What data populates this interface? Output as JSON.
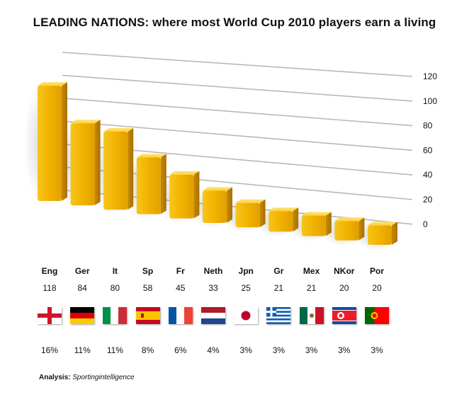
{
  "title": "LEADING NATIONS: where most World Cup 2010 players earn a living",
  "chart_data": {
    "type": "bar",
    "title": "LEADING NATIONS: where most World Cup 2010 players earn a living",
    "categories": [
      "Eng",
      "Ger",
      "It",
      "Sp",
      "Fr",
      "Neth",
      "Jpn",
      "Gr",
      "Mex",
      "NKor",
      "Por"
    ],
    "values": [
      118,
      84,
      80,
      58,
      45,
      33,
      25,
      21,
      21,
      20,
      20
    ],
    "shares": [
      "16%",
      "11%",
      "11%",
      "8%",
      "6%",
      "4%",
      "3%",
      "3%",
      "3%",
      "3%",
      "3%"
    ],
    "yticks": [
      "0",
      "20",
      "40",
      "60",
      "80",
      "100",
      "120"
    ],
    "ylim": [
      0,
      120
    ],
    "grid": true,
    "bar_color": "#f2b400",
    "style": "3d-perspective"
  },
  "flags": [
    "england-flag-icon",
    "germany-flag-icon",
    "italy-flag-icon",
    "spain-flag-icon",
    "france-flag-icon",
    "netherlands-flag-icon",
    "japan-flag-icon",
    "greece-flag-icon",
    "mexico-flag-icon",
    "north-korea-flag-icon",
    "portugal-flag-icon"
  ],
  "source": {
    "label": "Analysis:",
    "name": "Sportingintelligence"
  }
}
